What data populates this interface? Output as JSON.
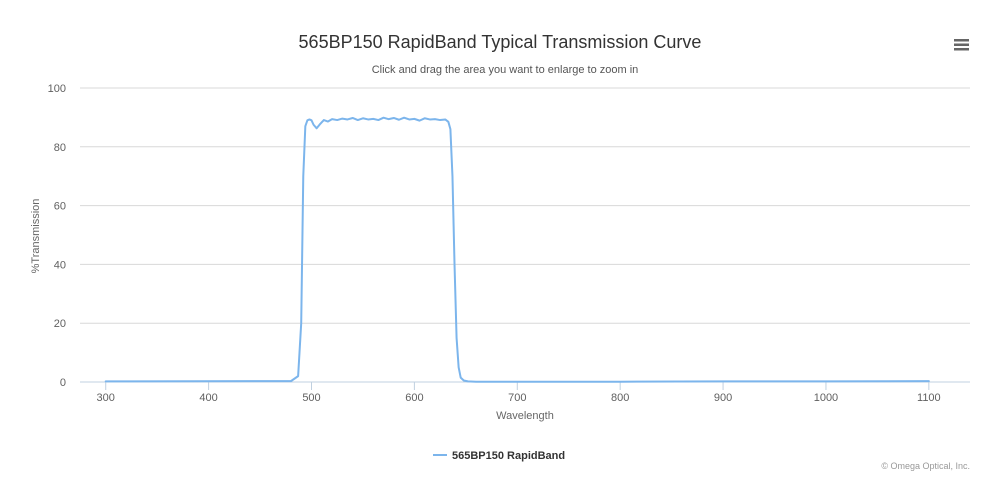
{
  "chart_data": {
    "type": "line",
    "title": "565BP150 RapidBand Typical Transmission Curve",
    "subtitle": "Click and drag the area you want to enlarge to zoom in",
    "xlabel": "Wavelength",
    "ylabel": "%Transmission",
    "xlim": [
      275,
      1140
    ],
    "ylim": [
      0,
      100
    ],
    "x_ticks": [
      300,
      400,
      500,
      600,
      700,
      800,
      900,
      1000,
      1100
    ],
    "y_ticks": [
      0,
      20,
      40,
      60,
      80,
      100
    ],
    "grid": true,
    "legend_position": "bottom-center",
    "series": [
      {
        "name": "565BP150 RapidBand",
        "color": "#7cb5ec",
        "x": [
          300,
          480,
          487,
          490,
          492,
          494,
          496,
          498,
          500,
          502,
          505,
          508,
          512,
          516,
          520,
          525,
          530,
          535,
          540,
          545,
          550,
          555,
          560,
          565,
          570,
          575,
          580,
          585,
          590,
          595,
          600,
          605,
          610,
          615,
          620,
          625,
          630,
          633,
          635,
          637,
          639,
          641,
          643,
          645,
          648,
          652,
          660,
          700,
          800,
          900,
          1000,
          1100
        ],
        "y": [
          0.2,
          0.3,
          2,
          20,
          70,
          87,
          89,
          89.3,
          89,
          87.5,
          86.3,
          87.6,
          89.1,
          88.6,
          89.4,
          89.1,
          89.6,
          89.3,
          89.8,
          89.1,
          89.7,
          89.3,
          89.5,
          89.1,
          89.9,
          89.4,
          89.8,
          89.2,
          89.9,
          89.3,
          89.5,
          88.9,
          89.7,
          89.3,
          89.4,
          89.1,
          89.3,
          88.5,
          86,
          70,
          40,
          15,
          5,
          1.5,
          0.5,
          0.2,
          0.1,
          0.1,
          0.1,
          0.2,
          0.2,
          0.3
        ]
      }
    ]
  },
  "ui": {
    "menu_icon": "hamburger-menu-icon",
    "credits": "© Omega Optical, Inc."
  }
}
